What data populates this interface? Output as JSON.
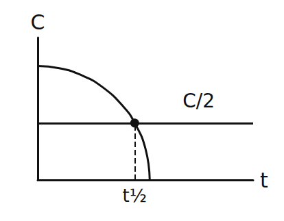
{
  "chart_data": {
    "type": "line",
    "x_label": "t",
    "y_label": "C",
    "xlim": [
      0,
      10
    ],
    "ylim": [
      0,
      10
    ],
    "tick_labels": false,
    "grid": false,
    "color": "#111111",
    "x": [
      0,
      1,
      2,
      3,
      4,
      4.5,
      5,
      5.2
    ],
    "values": [
      8,
      7.85,
      7.38,
      6.53,
      5.11,
      4,
      2.2,
      0
    ],
    "annotations": [
      {
        "text": "C/2",
        "y": 4
      },
      {
        "text": "t½",
        "x": 4.5
      }
    ]
  }
}
